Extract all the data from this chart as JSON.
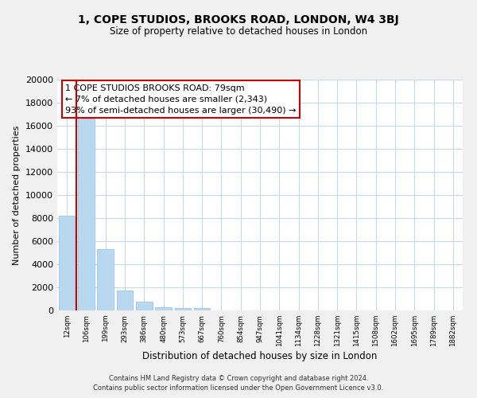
{
  "title": "1, COPE STUDIOS, BROOKS ROAD, LONDON, W4 3BJ",
  "subtitle": "Size of property relative to detached houses in London",
  "xlabel": "Distribution of detached houses by size in London",
  "ylabel": "Number of detached properties",
  "bar_labels": [
    "12sqm",
    "106sqm",
    "199sqm",
    "293sqm",
    "386sqm",
    "480sqm",
    "573sqm",
    "667sqm",
    "760sqm",
    "854sqm",
    "947sqm",
    "1041sqm",
    "1134sqm",
    "1228sqm",
    "1321sqm",
    "1415sqm",
    "1508sqm",
    "1602sqm",
    "1695sqm",
    "1789sqm",
    "1882sqm"
  ],
  "bar_values": [
    8200,
    16600,
    5300,
    1750,
    750,
    250,
    200,
    200,
    0,
    0,
    0,
    0,
    0,
    0,
    0,
    0,
    0,
    0,
    0,
    0,
    0
  ],
  "bar_color": "#b8d8f0",
  "bar_edge_color": "#9ac4e8",
  "highlight_color": "#cc0000",
  "ylim": [
    0,
    20000
  ],
  "yticks": [
    0,
    2000,
    4000,
    6000,
    8000,
    10000,
    12000,
    14000,
    16000,
    18000,
    20000
  ],
  "annotation_title": "1 COPE STUDIOS BROOKS ROAD: 79sqm",
  "annotation_line1": "← 7% of detached houses are smaller (2,343)",
  "annotation_line2": "93% of semi-detached houses are larger (30,490) →",
  "footer_line1": "Contains HM Land Registry data © Crown copyright and database right 2024.",
  "footer_line2": "Contains public sector information licensed under the Open Government Licence v3.0.",
  "bg_color": "#f0f0f0",
  "plot_bg_color": "#ffffff",
  "grid_color": "#c8d8e8"
}
